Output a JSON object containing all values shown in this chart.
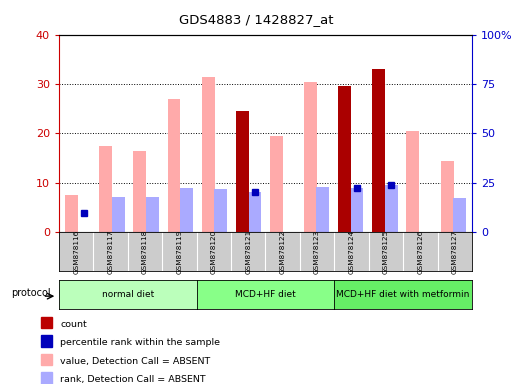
{
  "title": "GDS4883 / 1428827_at",
  "samples": [
    "GSM878116",
    "GSM878117",
    "GSM878118",
    "GSM878119",
    "GSM878120",
    "GSM878121",
    "GSM878122",
    "GSM878123",
    "GSM878124",
    "GSM878125",
    "GSM878126",
    "GSM878127"
  ],
  "pink_bar_values": [
    7.5,
    17.5,
    16.5,
    27.0,
    31.5,
    0.0,
    19.5,
    30.5,
    0.0,
    0.0,
    20.5,
    14.5
  ],
  "lightblue_bar_values": [
    0.0,
    18.0,
    18.0,
    22.5,
    22.0,
    20.5,
    0.0,
    23.0,
    22.5,
    24.0,
    0.0,
    17.5
  ],
  "dark_red_bar_values": [
    0.0,
    0.0,
    0.0,
    0.0,
    0.0,
    24.5,
    0.0,
    0.0,
    29.5,
    33.0,
    0.0,
    0.0
  ],
  "blue_square_values": [
    10.0,
    0.0,
    0.0,
    0.0,
    0.0,
    20.5,
    0.0,
    0.0,
    22.5,
    24.0,
    0.0,
    0.0
  ],
  "ylim_left": [
    0,
    40
  ],
  "ylim_right": [
    0,
    100
  ],
  "yticks_left": [
    0,
    10,
    20,
    30,
    40
  ],
  "yticks_right": [
    0,
    25,
    50,
    75,
    100
  ],
  "ytick_labels_left": [
    "0",
    "10",
    "20",
    "30",
    "40"
  ],
  "ytick_labels_right": [
    "0",
    "25",
    "50",
    "75",
    "100%"
  ],
  "protocols": [
    {
      "label": "normal diet",
      "start": 0,
      "end": 3,
      "color": "#bbffbb"
    },
    {
      "label": "MCD+HF diet",
      "start": 4,
      "end": 7,
      "color": "#88ff88"
    },
    {
      "label": "MCD+HF diet with metformin",
      "start": 8,
      "end": 11,
      "color": "#66ee66"
    }
  ],
  "protocol_row_label": "protocol",
  "legend_items": [
    {
      "color": "#bb0000",
      "label": "count"
    },
    {
      "color": "#0000bb",
      "label": "percentile rank within the sample"
    },
    {
      "color": "#ffaaaa",
      "label": "value, Detection Call = ABSENT"
    },
    {
      "color": "#aaaaff",
      "label": "rank, Detection Call = ABSENT"
    }
  ],
  "pink_color": "#ffaaaa",
  "lightblue_color": "#aaaaff",
  "darkred_color": "#aa0000",
  "blue_color": "#0000bb",
  "left_axis_color": "#cc0000",
  "right_axis_color": "#0000cc",
  "grid_color": "#000000"
}
